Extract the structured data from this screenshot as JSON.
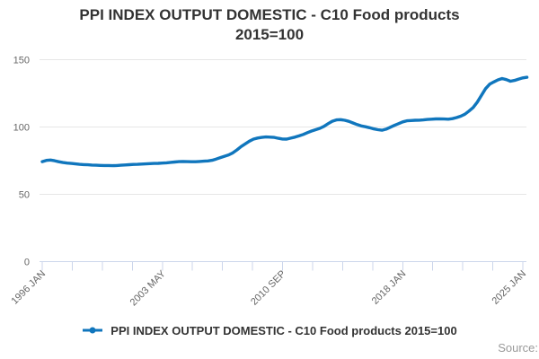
{
  "title": {
    "line1": "PPI INDEX OUTPUT DOMESTIC - C10 Food products",
    "line2": "2015=100"
  },
  "legend": {
    "label": "PPI INDEX OUTPUT DOMESTIC - C10 Food products 2015=100",
    "marker_icon": "line-with-dot-icon"
  },
  "source_label": "Source:",
  "colors": {
    "series": "#1076bd",
    "gridline": "#e6e6e6",
    "axis": "#ccd6eb",
    "tick_label": "#666666",
    "title_text": "#333333",
    "legend_text": "#333333",
    "source_text": "#999999",
    "background": "#ffffff"
  },
  "chart_data": {
    "type": "line",
    "title": "PPI INDEX OUTPUT DOMESTIC - C10 Food products 2015=100",
    "xlabel": "",
    "ylabel": "",
    "grid": "horizontal-only",
    "legend_position": "bottom-center",
    "y_ticks": [
      0,
      50,
      100,
      150
    ],
    "ylim": [
      0,
      150
    ],
    "x_tick_labels": [
      "1996 JAN",
      "2003 MAY",
      "2010 SEP",
      "2018 JAN",
      "2025 JAN"
    ],
    "x_minor_tick_count": 17,
    "labeled_tick_every": 4,
    "x_start_year": 1996,
    "x_step_years": 0.25,
    "xlim_years": [
      1996.0,
      2025.25
    ],
    "series": [
      {
        "name": "PPI INDEX OUTPUT DOMESTIC - C10 Food products 2015=100",
        "color": "#1076bd",
        "values": [
          74.3,
          75.2,
          75.5,
          74.9,
          74.2,
          73.6,
          73.2,
          72.9,
          72.6,
          72.3,
          72.1,
          71.9,
          71.7,
          71.6,
          71.5,
          71.4,
          71.4,
          71.3,
          71.4,
          71.6,
          71.8,
          72.0,
          72.2,
          72.3,
          72.5,
          72.6,
          72.8,
          72.9,
          73.0,
          73.2,
          73.4,
          73.7,
          74.0,
          74.3,
          74.4,
          74.3,
          74.2,
          74.2,
          74.4,
          74.6,
          74.8,
          75.3,
          76.2,
          77.3,
          78.3,
          79.3,
          80.8,
          83.0,
          85.5,
          87.5,
          89.5,
          91.0,
          91.8,
          92.3,
          92.6,
          92.5,
          92.3,
          91.6,
          91.1,
          91.0,
          91.7,
          92.5,
          93.4,
          94.5,
          95.8,
          97.0,
          98.0,
          99.0,
          100.5,
          102.5,
          104.3,
          105.3,
          105.5,
          105.0,
          104.2,
          103.0,
          101.8,
          100.8,
          100.2,
          99.5,
          98.6,
          98.0,
          97.6,
          98.4,
          99.8,
          101.2,
          102.5,
          103.8,
          104.6,
          104.8,
          105.0,
          105.1,
          105.3,
          105.6,
          105.8,
          106.0,
          106.1,
          105.9,
          105.8,
          106.2,
          107.0,
          108.0,
          109.5,
          111.8,
          114.5,
          118.5,
          123.5,
          128.5,
          131.8,
          133.5,
          135.0,
          136.0,
          135.2,
          134.0,
          134.6,
          135.6,
          136.5,
          136.9
        ]
      }
    ]
  }
}
